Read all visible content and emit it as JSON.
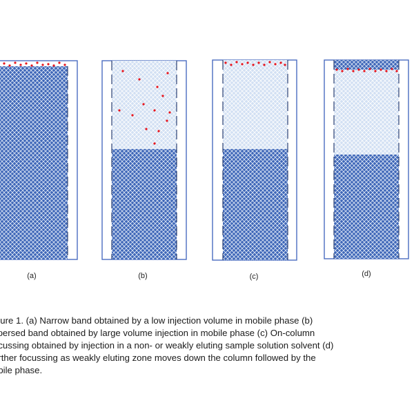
{
  "colors": {
    "packed_bed": "#3f67b8",
    "packed_bed_mesh": "#e6eef9",
    "solvent_zone": "#d2e0f3",
    "solvent_zone_mesh": "#ffffff",
    "column_border": "#4a6cc0",
    "analyte_dot": "#e8141c"
  },
  "panels": [
    {
      "label": "(a)",
      "analyte": "narrow-band"
    },
    {
      "label": "(b)",
      "analyte": "dispersed-band"
    },
    {
      "label": "(c)",
      "analyte": "focused-band-top"
    },
    {
      "label": "(d)",
      "analyte": "focused-band-moved"
    }
  ],
  "caption": {
    "lines": [
      "igure 1. (a) Narrow band obtained by a low injection volume in mobile phase (b)",
      "spersed band obtained by large volume injection in mobile phase (c) On-column",
      "ocussing obtained by injection in a non- or weakly eluting sample solution solvent (d)",
      "urther focussing as weakly eluting zone moves down the column followed by the",
      "obile phase."
    ]
  }
}
